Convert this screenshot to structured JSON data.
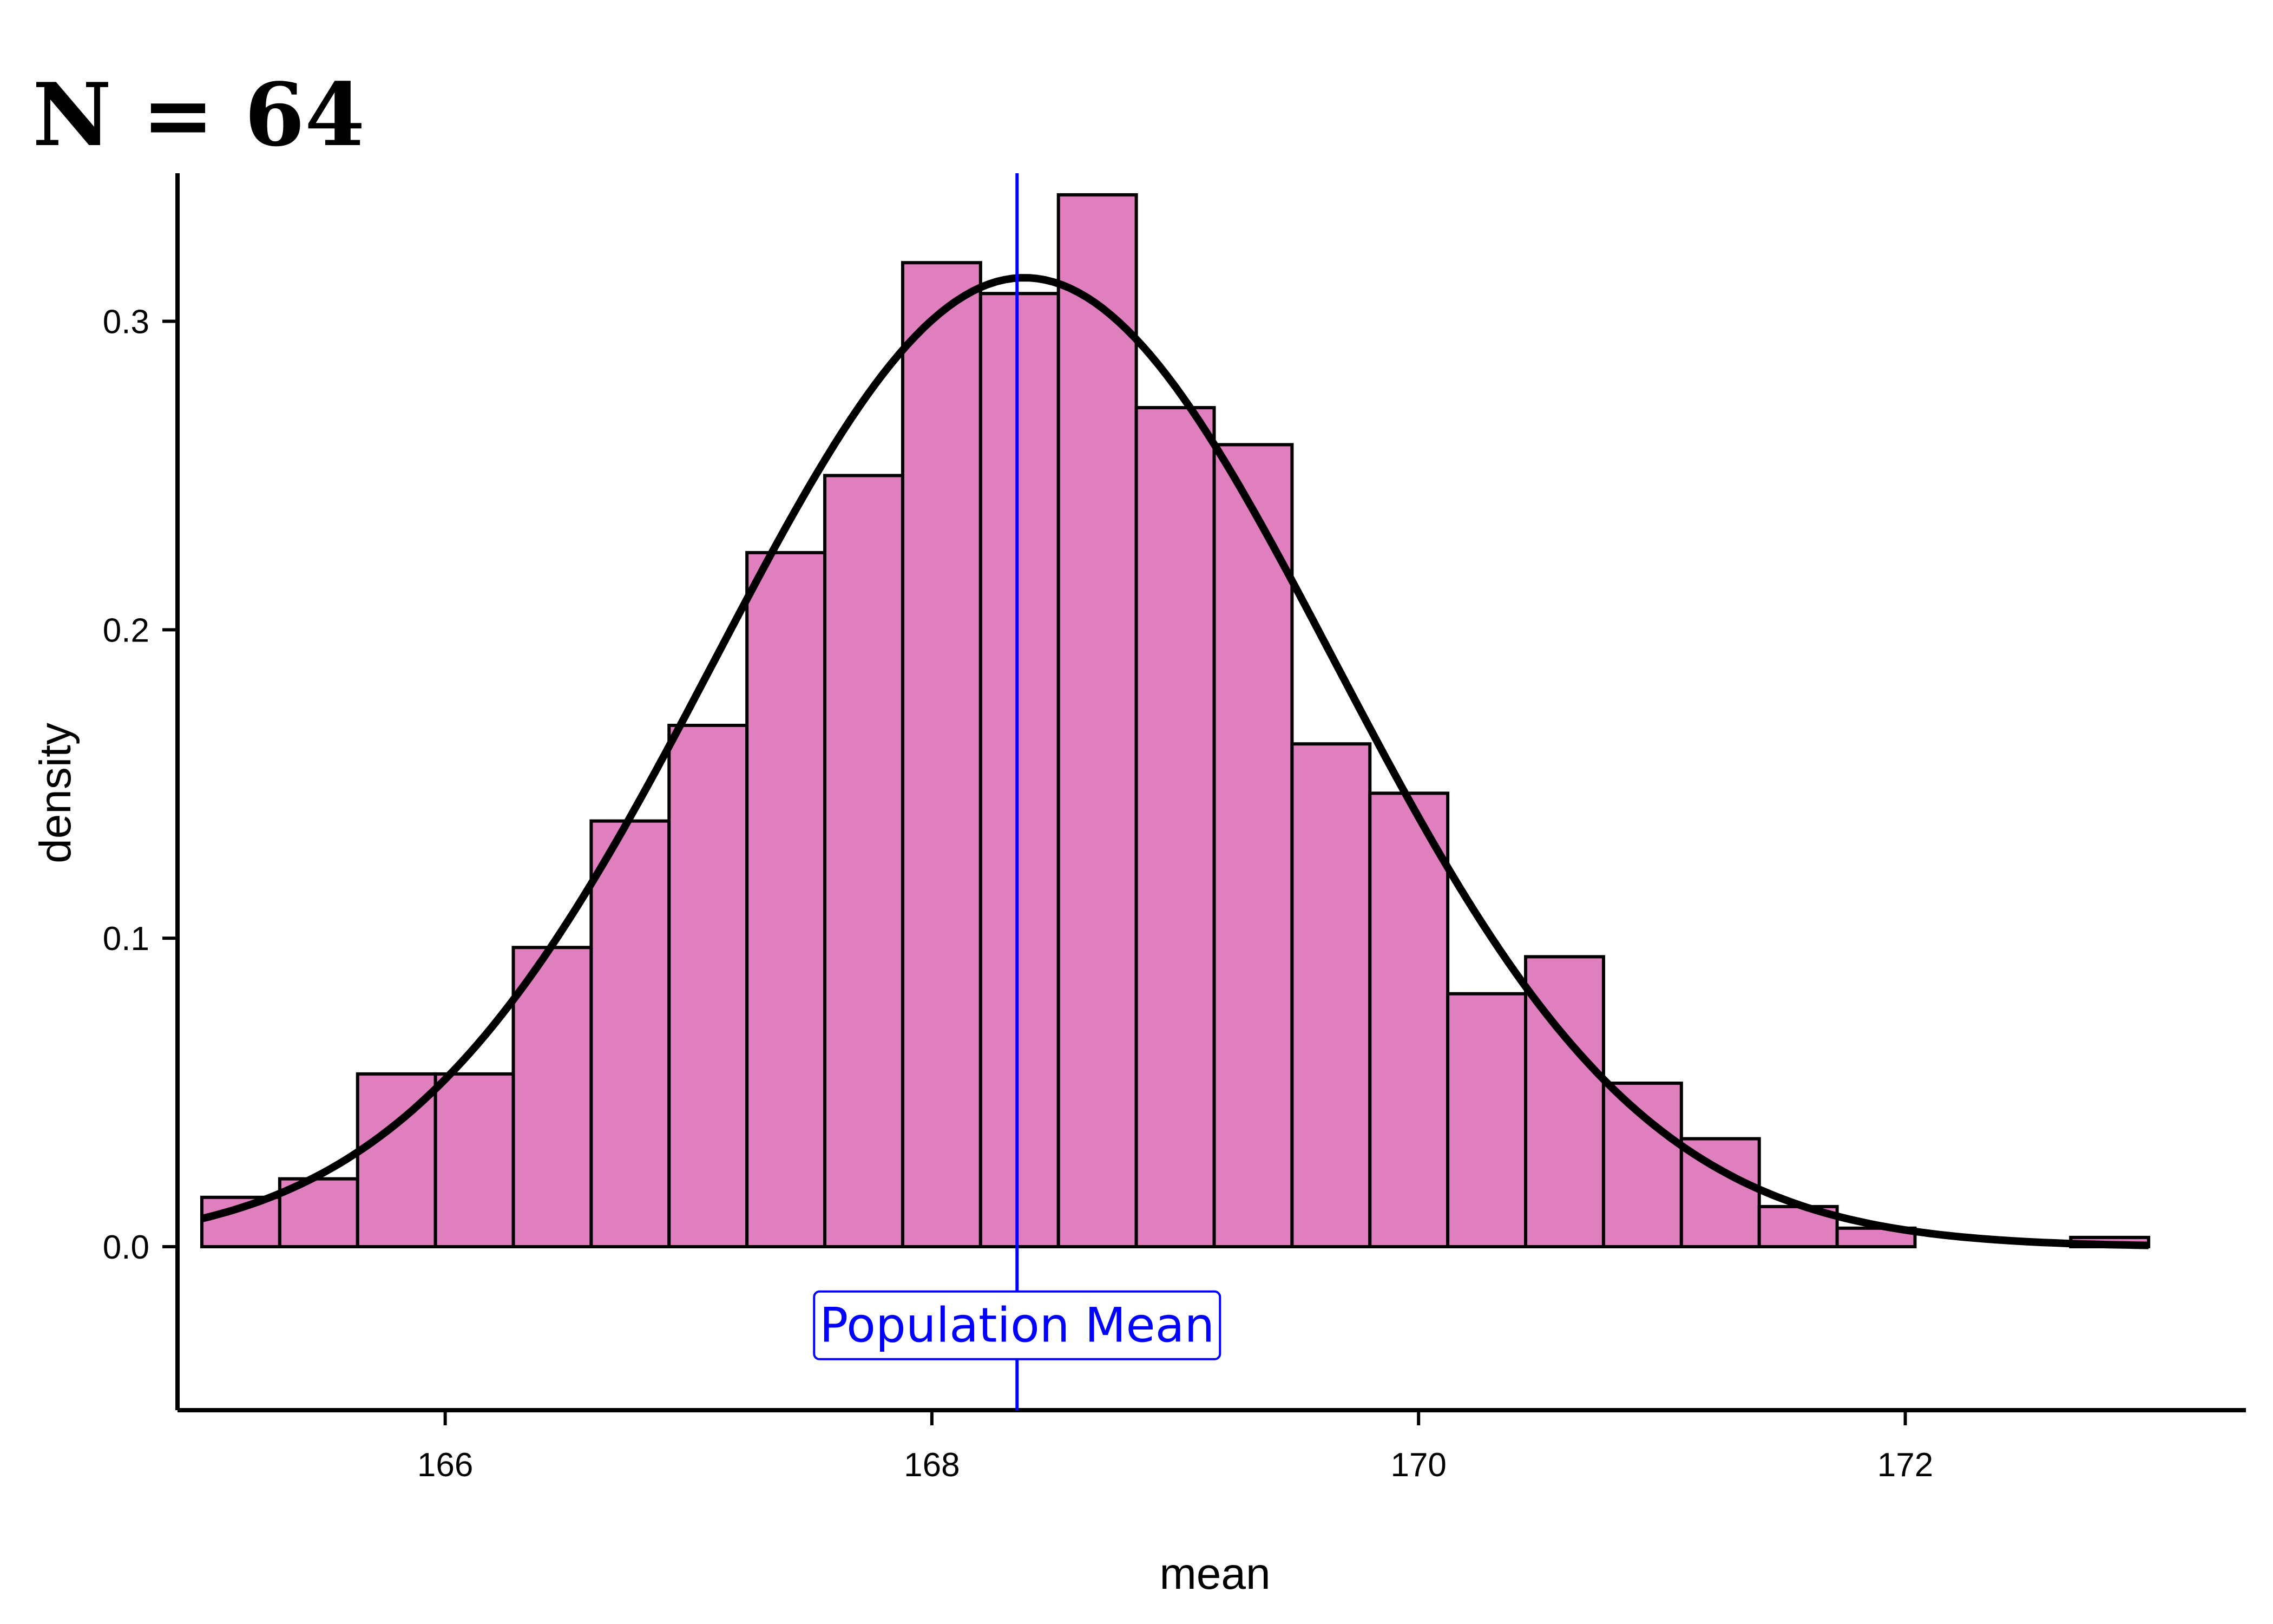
{
  "chart_data": {
    "type": "bar",
    "title": "N = 64",
    "xlabel": "mean",
    "ylabel": "density",
    "xlim": [
      164.9,
      173.4
    ],
    "ylim": [
      -0.053,
      0.348
    ],
    "xticks": [
      166,
      168,
      170,
      172
    ],
    "yticks": [
      0.0,
      0.1,
      0.2,
      0.3
    ],
    "xtick_labels": [
      "166",
      "168",
      "170",
      "172"
    ],
    "ytick_labels": [
      "0.0",
      "0.1",
      "0.2",
      "0.3"
    ],
    "bin_width": 0.32,
    "bin_starts": [
      165.0,
      165.32,
      165.64,
      165.96,
      166.28,
      166.6,
      166.92,
      167.24,
      167.56,
      167.88,
      168.2,
      168.52,
      168.84,
      169.16,
      169.48,
      169.8,
      170.12,
      170.44,
      170.76,
      171.08,
      171.4,
      171.72,
      172.04,
      172.36,
      172.68
    ],
    "values": [
      0.016,
      0.022,
      0.056,
      0.056,
      0.097,
      0.138,
      0.169,
      0.225,
      0.25,
      0.319,
      0.309,
      0.341,
      0.272,
      0.26,
      0.163,
      0.147,
      0.082,
      0.094,
      0.053,
      0.035,
      0.013,
      0.006,
      0.0,
      0.0,
      0.003
    ],
    "curve": {
      "type": "normal",
      "mean": 168.38,
      "sd": 1.27,
      "x_range": [
        165.0,
        173.0
      ]
    },
    "reference_line": {
      "x": 168.35,
      "label": "Population Mean"
    },
    "colors": {
      "bar_fill": "#e07fbd",
      "bar_stroke": "#000000",
      "curve": "#000000",
      "reference": "#0000ff"
    },
    "grid": false,
    "legend": "none"
  }
}
